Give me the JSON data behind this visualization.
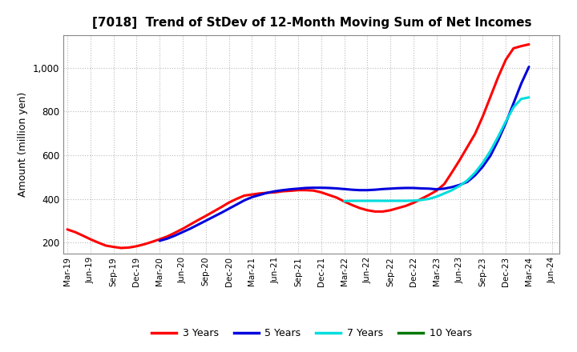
{
  "title": "[7018]  Trend of StDev of 12-Month Moving Sum of Net Incomes",
  "ylabel": "Amount (million yen)",
  "background_color": "#ffffff",
  "grid_color": "#bbbbbb",
  "ylim": [
    150,
    1150
  ],
  "yticks": [
    200,
    400,
    600,
    800,
    1000
  ],
  "series": {
    "3 Years": {
      "color": "#ff0000",
      "x": [
        0,
        1,
        2,
        3,
        4,
        5,
        6,
        7,
        8,
        9,
        10,
        11,
        12,
        13,
        14,
        15,
        16,
        17,
        18,
        19,
        20,
        21,
        22,
        23,
        24,
        25,
        26,
        27,
        28,
        29,
        30,
        31,
        32,
        33,
        34,
        35,
        36,
        37,
        38,
        39,
        40,
        41,
        42,
        43,
        44,
        45,
        46,
        47,
        48,
        49,
        50,
        51,
        52,
        53,
        54,
        55,
        56,
        57,
        58,
        59,
        60
      ],
      "y": [
        260,
        248,
        232,
        215,
        200,
        186,
        180,
        175,
        177,
        183,
        192,
        203,
        215,
        228,
        245,
        263,
        283,
        303,
        322,
        342,
        362,
        383,
        400,
        415,
        420,
        425,
        428,
        430,
        435,
        437,
        440,
        440,
        438,
        430,
        418,
        406,
        388,
        372,
        358,
        348,
        342,
        342,
        348,
        358,
        368,
        382,
        400,
        418,
        438,
        468,
        522,
        578,
        638,
        698,
        778,
        868,
        958,
        1038,
        1090,
        1100,
        1108
      ]
    },
    "5 Years": {
      "color": "#0000dd",
      "x": [
        12,
        13,
        14,
        15,
        16,
        17,
        18,
        19,
        20,
        21,
        22,
        23,
        24,
        25,
        26,
        27,
        28,
        29,
        30,
        31,
        32,
        33,
        34,
        35,
        36,
        37,
        38,
        39,
        40,
        41,
        42,
        43,
        44,
        45,
        46,
        47,
        48,
        49,
        50,
        51,
        52,
        53,
        54,
        55,
        56,
        57,
        58,
        59,
        60
      ],
      "y": [
        208,
        218,
        232,
        248,
        264,
        282,
        300,
        318,
        336,
        355,
        374,
        393,
        408,
        418,
        428,
        435,
        440,
        444,
        447,
        450,
        451,
        451,
        450,
        448,
        445,
        442,
        440,
        440,
        442,
        445,
        447,
        449,
        450,
        450,
        448,
        447,
        444,
        447,
        454,
        464,
        478,
        508,
        548,
        598,
        668,
        748,
        838,
        928,
        1005
      ]
    },
    "7 Years": {
      "color": "#00dddd",
      "x": [
        36,
        37,
        38,
        39,
        40,
        41,
        42,
        43,
        44,
        45,
        46,
        47,
        48,
        49,
        50,
        51,
        52,
        53,
        54,
        55,
        56,
        57,
        58,
        59,
        60
      ],
      "y": [
        390,
        391,
        391,
        391,
        391,
        391,
        391,
        391,
        391,
        392,
        395,
        400,
        410,
        425,
        440,
        460,
        485,
        520,
        565,
        620,
        685,
        755,
        820,
        858,
        865
      ]
    },
    "10 Years": {
      "color": "#007700",
      "x": [],
      "y": []
    }
  },
  "xtick_labels": [
    "Mar-19",
    "Jun-19",
    "Sep-19",
    "Dec-19",
    "Mar-20",
    "Jun-20",
    "Sep-20",
    "Dec-20",
    "Mar-21",
    "Jun-21",
    "Sep-21",
    "Dec-21",
    "Mar-22",
    "Jun-22",
    "Sep-22",
    "Dec-22",
    "Mar-23",
    "Jun-23",
    "Sep-23",
    "Dec-23",
    "Mar-24",
    "Jun-24"
  ],
  "xtick_positions": [
    0,
    3,
    6,
    9,
    12,
    15,
    18,
    21,
    24,
    27,
    30,
    33,
    36,
    39,
    42,
    45,
    48,
    51,
    54,
    57,
    60,
    63
  ],
  "legend_entries": [
    "3 Years",
    "5 Years",
    "7 Years",
    "10 Years"
  ],
  "legend_colors": [
    "#ff0000",
    "#0000dd",
    "#00dddd",
    "#007700"
  ],
  "legend_linewidths": [
    2.5,
    2.5,
    2.5,
    2.5
  ]
}
